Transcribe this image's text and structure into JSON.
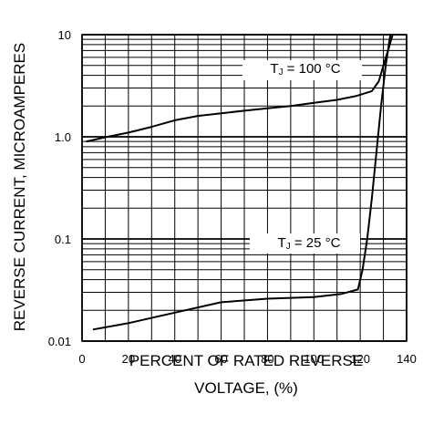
{
  "chart_data": {
    "type": "line",
    "title": "",
    "xlabel_line1": "PERCENT OF RATED REVERSE",
    "xlabel_line2": "VOLTAGE, (%)",
    "ylabel": "REVERSE CURRENT, MICROAMPERES",
    "xlim": [
      0,
      140
    ],
    "ylim": [
      0.01,
      10
    ],
    "yscale": "log",
    "grid": true,
    "x_ticks": [
      0,
      20,
      40,
      60,
      80,
      100,
      120,
      140
    ],
    "x_tick_labels": [
      "0",
      "20",
      "40",
      "60",
      "80",
      "100",
      "120",
      "140"
    ],
    "y_ticks": [
      0.01,
      0.1,
      1,
      10
    ],
    "y_tick_labels": [
      "0.01",
      "0.1",
      "1.0",
      "10"
    ],
    "colors": {
      "line": "#000000",
      "grid": "#000000",
      "background": "#ffffff"
    },
    "series": [
      {
        "label_prefix": "T",
        "label_sub": "J",
        "label_rest": " = 100 °C",
        "x": [
          2,
          10,
          20,
          30,
          40,
          50,
          60,
          70,
          80,
          90,
          100,
          110,
          118,
          125,
          128,
          130,
          132,
          134
        ],
        "y": [
          0.9,
          0.99,
          1.1,
          1.25,
          1.45,
          1.6,
          1.7,
          1.8,
          1.9,
          2.0,
          2.15,
          2.3,
          2.5,
          2.8,
          3.5,
          5.0,
          7.0,
          10.0
        ]
      },
      {
        "label_prefix": "T",
        "label_sub": "J",
        "label_rest": " = 25 °C",
        "x": [
          5,
          20,
          40,
          60,
          80,
          100,
          112,
          119,
          121,
          123,
          125,
          127,
          129,
          131,
          133
        ],
        "y": [
          0.013,
          0.015,
          0.019,
          0.024,
          0.026,
          0.027,
          0.029,
          0.032,
          0.05,
          0.1,
          0.25,
          0.7,
          2.0,
          5.0,
          10.0
        ]
      }
    ]
  }
}
